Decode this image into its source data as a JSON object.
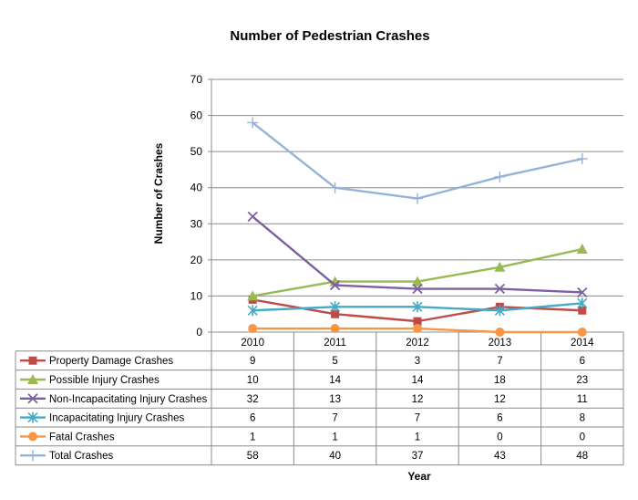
{
  "chart_data": {
    "type": "line",
    "title": "Number of Pedestrian Crashes",
    "xlabel": "Year",
    "ylabel": "Number of Crashes",
    "ylim": [
      0,
      70
    ],
    "yticks": [
      0,
      10,
      20,
      30,
      40,
      50,
      60,
      70
    ],
    "grid": true,
    "legend": "data-table",
    "categories": [
      "2010",
      "2011",
      "2012",
      "2013",
      "2014"
    ],
    "series": [
      {
        "name": "Property Damage Crashes",
        "values": [
          9,
          5,
          3,
          7,
          6
        ],
        "color": "#BE4B48",
        "marker": "square"
      },
      {
        "name": "Possible Injury Crashes",
        "values": [
          10,
          14,
          14,
          18,
          23
        ],
        "color": "#98B954",
        "marker": "triangle"
      },
      {
        "name": "Non-Incapacitating Injury Crashes",
        "values": [
          32,
          13,
          12,
          12,
          11
        ],
        "color": "#7D60A0",
        "marker": "x"
      },
      {
        "name": "Incapacitating Injury Crashes",
        "values": [
          6,
          7,
          7,
          6,
          8
        ],
        "color": "#46AAC5",
        "marker": "asterisk"
      },
      {
        "name": "Fatal Crashes",
        "values": [
          1,
          1,
          1,
          0,
          0
        ],
        "color": "#F79646",
        "marker": "circle"
      },
      {
        "name": "Total Crashes",
        "values": [
          58,
          40,
          37,
          43,
          48
        ],
        "color": "#95B3D7",
        "marker": "plus"
      }
    ]
  }
}
